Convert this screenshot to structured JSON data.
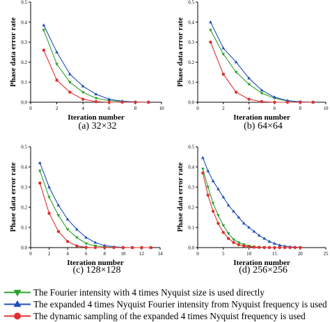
{
  "colors": {
    "green": "#2ca02c",
    "blue": "#1f4eb8",
    "red": "#e03030",
    "axis": "#000000"
  },
  "legend": [
    {
      "series": 0,
      "marker": "triangle-down",
      "label": "The Fourier intensity with 4 times Nyquist size is used directly"
    },
    {
      "series": 1,
      "marker": "triangle-up",
      "label": "The expanded 4 times Nyquist Fourier intensity from Nyquist frequency is used"
    },
    {
      "series": 2,
      "marker": "circle",
      "label": "The dynamic sampling of the expanded 4 times Nyquist frequency is used"
    }
  ],
  "chart_data": [
    {
      "type": "line",
      "caption": "(a) 32×32",
      "xlabel": "Iteration number",
      "ylabel": "Phase data error rate",
      "xlim": [
        0,
        10
      ],
      "ylim": [
        0,
        0.5
      ],
      "xticks": [
        0,
        2,
        4,
        6,
        8,
        10
      ],
      "yticks": [
        0.0,
        0.1,
        0.2,
        0.3,
        0.4,
        0.5
      ],
      "x": [
        1,
        2,
        3,
        4,
        5,
        6,
        7,
        8,
        9
      ],
      "series": [
        {
          "values": [
            0.36,
            0.19,
            0.1,
            0.05,
            0.02,
            0.008,
            0.003,
            0.001,
            0.0
          ]
        },
        {
          "values": [
            0.385,
            0.25,
            0.14,
            0.08,
            0.04,
            0.015,
            0.005,
            0.001,
            0.0
          ]
        },
        {
          "values": [
            0.26,
            0.11,
            0.05,
            0.015,
            0.003,
            0.0,
            0.0,
            0.0,
            0.0
          ]
        }
      ]
    },
    {
      "type": "line",
      "caption": "(b) 64×64",
      "xlabel": "Iteration number",
      "ylabel": "Phase data error rate",
      "xlim": [
        0,
        10
      ],
      "ylim": [
        0,
        0.5
      ],
      "xticks": [
        0,
        2,
        4,
        6,
        8,
        10
      ],
      "yticks": [
        0.0,
        0.1,
        0.2,
        0.3,
        0.4,
        0.5
      ],
      "x": [
        1,
        2,
        3,
        4,
        5,
        6,
        7,
        8,
        9
      ],
      "series": [
        {
          "values": [
            0.36,
            0.24,
            0.15,
            0.09,
            0.045,
            0.02,
            0.006,
            0.002,
            0.0
          ]
        },
        {
          "values": [
            0.4,
            0.27,
            0.2,
            0.12,
            0.06,
            0.025,
            0.008,
            0.002,
            0.0
          ]
        },
        {
          "values": [
            0.3,
            0.14,
            0.05,
            0.015,
            0.003,
            0.0,
            0.0,
            0.0,
            0.0
          ]
        }
      ]
    },
    {
      "type": "line",
      "caption": "(c) 128×128",
      "xlabel": "Iteration number",
      "ylabel": "Phase data error rate",
      "xlim": [
        0,
        14
      ],
      "ylim": [
        0,
        0.5
      ],
      "xticks": [
        0,
        2,
        4,
        6,
        8,
        10,
        12,
        14
      ],
      "yticks": [
        0.0,
        0.1,
        0.2,
        0.3,
        0.4,
        0.5
      ],
      "x": [
        1,
        2,
        3,
        4,
        5,
        6,
        7,
        8,
        9,
        10,
        11,
        12,
        13
      ],
      "series": [
        {
          "values": [
            0.38,
            0.25,
            0.16,
            0.09,
            0.05,
            0.02,
            0.008,
            0.003,
            0.001,
            0.0,
            0.0,
            0.0,
            0.0
          ]
        },
        {
          "values": [
            0.42,
            0.3,
            0.21,
            0.14,
            0.09,
            0.05,
            0.025,
            0.01,
            0.004,
            0.001,
            0.0,
            0.0,
            0.0
          ]
        },
        {
          "values": [
            0.32,
            0.17,
            0.08,
            0.03,
            0.008,
            0.001,
            0.0,
            0.0,
            0.0,
            0.0,
            0.0,
            0.0,
            0.0
          ]
        }
      ]
    },
    {
      "type": "line",
      "caption": "(d) 256×256",
      "xlabel": "Iteration number",
      "ylabel": "Phase data error rate",
      "xlim": [
        0,
        25
      ],
      "ylim": [
        0,
        0.5
      ],
      "xticks": [
        0,
        5,
        10,
        15,
        20,
        25
      ],
      "yticks": [
        0.0,
        0.1,
        0.2,
        0.3,
        0.4,
        0.5
      ],
      "x": [
        1,
        2,
        3,
        4,
        5,
        6,
        7,
        8,
        9,
        10,
        11,
        12,
        13,
        14,
        15,
        16,
        17,
        18,
        19,
        20
      ],
      "series": [
        {
          "values": [
            0.39,
            0.3,
            0.22,
            0.16,
            0.11,
            0.07,
            0.04,
            0.025,
            0.015,
            0.008,
            0.004,
            0.002,
            0.001,
            0.0,
            0.0,
            0.0,
            0.0,
            0.0,
            0.0,
            0.0
          ]
        },
        {
          "values": [
            0.445,
            0.38,
            0.33,
            0.29,
            0.25,
            0.21,
            0.18,
            0.15,
            0.12,
            0.1,
            0.08,
            0.06,
            0.045,
            0.03,
            0.02,
            0.012,
            0.007,
            0.004,
            0.002,
            0.001
          ]
        },
        {
          "values": [
            0.37,
            0.26,
            0.18,
            0.12,
            0.075,
            0.045,
            0.025,
            0.014,
            0.008,
            0.004,
            0.002,
            0.001,
            0.0,
            0.0,
            0.0,
            0.0,
            0.0,
            0.0,
            0.0,
            0.0
          ]
        }
      ]
    }
  ]
}
